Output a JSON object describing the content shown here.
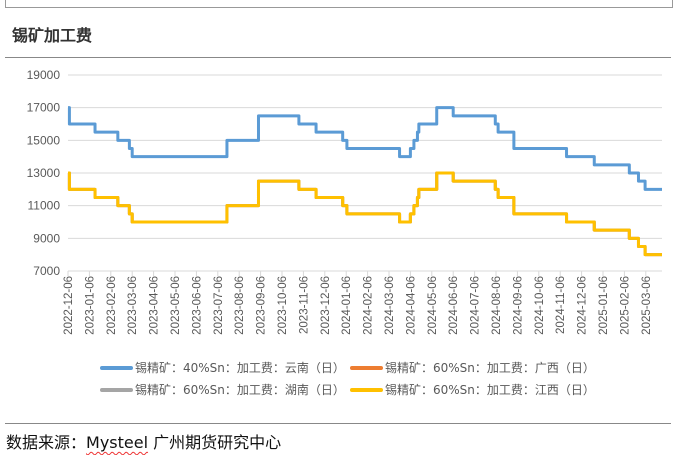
{
  "title": "锡矿加工费",
  "source": {
    "prefix": "数据来源：",
    "brand": "Mysteel",
    "suffix": " 广州期货研究中心"
  },
  "chart_data": {
    "type": "line",
    "title": "锡矿加工费",
    "xlabel": "",
    "ylabel": "",
    "ylim": [
      7000,
      19000
    ],
    "yticks": [
      "19000",
      "17000",
      "15000",
      "13000",
      "11000",
      "9000",
      "7000"
    ],
    "xticks": [
      "2022-12-06",
      "2023-01-06",
      "2023-02-06",
      "2023-03-06",
      "2023-04-06",
      "2023-05-06",
      "2023-06-06",
      "2023-07-06",
      "2023-08-06",
      "2023-09-06",
      "2023-10-06",
      "2023-11-06",
      "2023-12-06",
      "2024-01-06",
      "2024-02-06",
      "2024-03-06",
      "2024-04-06",
      "2024-05-06",
      "2024-06-06",
      "2024-07-06",
      "2024-08-06",
      "2024-09-06",
      "2024-10-06",
      "2024-11-06",
      "2024-12-06",
      "2025-01-06",
      "2025-02-06",
      "2025-03-06"
    ],
    "grid": true,
    "legend_position": "bottom",
    "step": true,
    "x": [
      "2022-12-06",
      "2022-12-08",
      "2023-01-14",
      "2023-02-16",
      "2023-03-02",
      "2023-03-06",
      "2023-07-19",
      "2023-09-03",
      "2023-10-30",
      "2023-11-24",
      "2024-01-01",
      "2024-01-07",
      "2024-03-21",
      "2024-04-06",
      "2024-04-11",
      "2024-04-16",
      "2024-04-18",
      "2024-05-13",
      "2024-06-06",
      "2024-08-05",
      "2024-08-09",
      "2024-09-01",
      "2024-11-15",
      "2024-12-24",
      "2025-02-13",
      "2025-02-26",
      "2025-03-05",
      "2025-03-29"
    ],
    "series": [
      {
        "name": "锡精矿：40%Sn：加工费：云南（日）",
        "color": "#5b9bd5",
        "values": [
          17000,
          16000,
          15500,
          15000,
          14500,
          14000,
          15000,
          16500,
          16000,
          15500,
          15000,
          14500,
          14000,
          14500,
          15000,
          15500,
          16000,
          17000,
          16500,
          16000,
          15500,
          14500,
          14000,
          13500,
          13000,
          12500,
          12000,
          12000
        ]
      },
      {
        "name": "锡精矿：60%Sn：加工费：广西（日）",
        "color": "#ed7d31",
        "values": [
          13000,
          12000,
          11500,
          11000,
          10500,
          10000,
          11000,
          12500,
          12000,
          11500,
          11000,
          10500,
          10000,
          10500,
          11000,
          11500,
          12000,
          13000,
          12500,
          12000,
          11500,
          10500,
          10000,
          9500,
          9000,
          8500,
          8000,
          8000
        ]
      },
      {
        "name": "锡精矿：60%Sn：加工费：湖南（日）",
        "color": "#a5a5a5",
        "values": [
          13000,
          12000,
          11500,
          11000,
          10500,
          10000,
          11000,
          12500,
          12000,
          11500,
          11000,
          10500,
          10000,
          10500,
          11000,
          11500,
          12000,
          13000,
          12500,
          12000,
          11500,
          10500,
          10000,
          9500,
          9000,
          8500,
          8000,
          8000
        ]
      },
      {
        "name": "锡精矿：60%Sn：加工费：江西（日）",
        "color": "#ffc000",
        "values": [
          13000,
          12000,
          11500,
          11000,
          10500,
          10000,
          11000,
          12500,
          12000,
          11500,
          11000,
          10500,
          10000,
          10500,
          11000,
          11500,
          12000,
          13000,
          12500,
          12000,
          11500,
          10500,
          10000,
          9500,
          9000,
          8500,
          8000,
          8000
        ]
      }
    ]
  }
}
